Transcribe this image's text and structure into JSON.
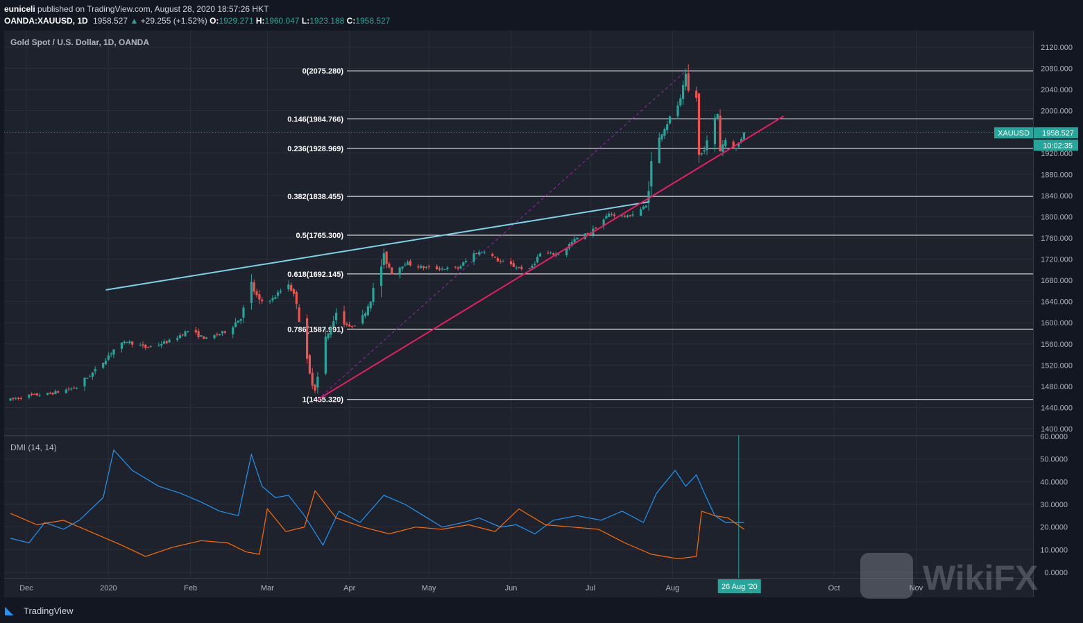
{
  "header": {
    "author": "euniceli",
    "published_text": "published on TradingView.com, August 28, 2020 18:57:26 HKT",
    "symbol": "OANDA:XAUUSD, 1D",
    "price": "1958.527",
    "change": "+29.255 (+1.52%)",
    "open_label": "O:",
    "open": "1929.271",
    "high_label": "H:",
    "high": "1960.047",
    "low_label": "L:",
    "low": "1923.188",
    "close_label": "C:",
    "close": "1958.527"
  },
  "colors": {
    "background": "#1e222d",
    "up": "#26a69a",
    "down": "#ef5350",
    "fib": "#ffffff",
    "resistance_line": "#7dd3e8",
    "support_line": "#e91e63",
    "fib_trend": "#9c27b0",
    "dmi_plus": "#2196f3",
    "dmi_minus": "#ff6d00",
    "tag": "#26a69a"
  },
  "chart_data": {
    "type": "candlestick",
    "title": "Gold Spot / U.S. Dollar, 1D, OANDA",
    "ylim": [
      1400,
      2130
    ],
    "y_ticks": [
      "2120.000",
      "2080.000",
      "2040.000",
      "2000.000",
      "1960.000",
      "1920.000",
      "1880.000",
      "1840.000",
      "1800.000",
      "1760.000",
      "1720.000",
      "1680.000",
      "1640.000",
      "1600.000",
      "1560.000",
      "1520.000",
      "1480.000",
      "1440.000",
      "1400.000"
    ],
    "x_ticks": [
      "Dec",
      "2020",
      "Feb",
      "Mar",
      "Apr",
      "May",
      "Jun",
      "Jul",
      "Aug",
      "Oct",
      "Nov"
    ],
    "close_path": [
      [
        "2019-11-25",
        1455
      ],
      [
        "2019-12-03",
        1463
      ],
      [
        "2019-12-10",
        1466
      ],
      [
        "2019-12-20",
        1478
      ],
      [
        "2019-12-27",
        1510
      ],
      [
        "2020-01-03",
        1550
      ],
      [
        "2020-01-08",
        1565
      ],
      [
        "2020-01-15",
        1553
      ],
      [
        "2020-01-24",
        1565
      ],
      [
        "2020-01-31",
        1585
      ],
      [
        "2020-02-07",
        1570
      ],
      [
        "2020-02-14",
        1583
      ],
      [
        "2020-02-20",
        1610
      ],
      [
        "2020-02-24",
        1670
      ],
      [
        "2020-02-27",
        1640
      ],
      [
        "2020-03-03",
        1645
      ],
      [
        "2020-03-09",
        1675
      ],
      [
        "2020-03-12",
        1640
      ],
      [
        "2020-03-16",
        1513
      ],
      [
        "2020-03-19",
        1475
      ],
      [
        "2020-03-23",
        1565
      ],
      [
        "2020-03-27",
        1620
      ],
      [
        "2020-04-01",
        1590
      ],
      [
        "2020-04-06",
        1610
      ],
      [
        "2020-04-09",
        1645
      ],
      [
        "2020-04-14",
        1725
      ],
      [
        "2020-04-17",
        1695
      ],
      [
        "2020-04-22",
        1713
      ],
      [
        "2020-04-28",
        1705
      ],
      [
        "2020-05-05",
        1702
      ],
      [
        "2020-05-12",
        1703
      ],
      [
        "2020-05-18",
        1730
      ],
      [
        "2020-05-22",
        1735
      ],
      [
        "2020-05-28",
        1715
      ],
      [
        "2020-06-03",
        1705
      ],
      [
        "2020-06-08",
        1700
      ],
      [
        "2020-06-12",
        1730
      ],
      [
        "2020-06-19",
        1730
      ],
      [
        "2020-06-26",
        1760
      ],
      [
        "2020-07-01",
        1770
      ],
      [
        "2020-07-08",
        1805
      ],
      [
        "2020-07-15",
        1800
      ],
      [
        "2020-07-22",
        1820
      ],
      [
        "2020-07-24",
        1900
      ],
      [
        "2020-07-28",
        1960
      ],
      [
        "2020-08-04",
        2020
      ],
      [
        "2020-08-06",
        2064
      ],
      [
        "2020-08-07",
        2035
      ],
      [
        "2020-08-10",
        2025
      ],
      [
        "2020-08-11",
        1910
      ],
      [
        "2020-08-14",
        1940
      ],
      [
        "2020-08-18",
        1995
      ],
      [
        "2020-08-19",
        1930
      ],
      [
        "2020-08-21",
        1945
      ],
      [
        "2020-08-25",
        1929
      ],
      [
        "2020-08-28",
        1958.527
      ]
    ],
    "fibonacci": [
      {
        "label": "0(2075.280)",
        "value": 2075.28
      },
      {
        "label": "0.146(1984.766)",
        "value": 1984.766
      },
      {
        "label": "0.236(1928.969)",
        "value": 1928.969
      },
      {
        "label": "0.382(1838.455)",
        "value": 1838.455
      },
      {
        "label": "0.5(1765.300)",
        "value": 1765.3
      },
      {
        "label": "0.618(1692.145)",
        "value": 1692.145
      },
      {
        "label": "0.786(1587.991)",
        "value": 1587.991
      },
      {
        "label": "1(1455.320)",
        "value": 1455.32
      }
    ],
    "trendlines": [
      {
        "name": "resistance",
        "from": [
          "2019-12-31",
          1662
        ],
        "to": [
          "2020-07-23",
          1828
        ]
      },
      {
        "name": "support",
        "from": [
          "2020-03-20",
          1455
        ],
        "to": [
          "2020-09-12",
          1990
        ]
      },
      {
        "name": "fib_trend",
        "from": [
          "2020-03-20",
          1455
        ],
        "to": [
          "2020-08-06",
          2075
        ]
      }
    ],
    "last_price_label": "XAUUSD",
    "last_price": "1958.527",
    "countdown": "10:02:35",
    "dmi": {
      "title": "DMI (14, 14)",
      "ylim": [
        0,
        60
      ],
      "y_ticks": [
        "60.0000",
        "50.0000",
        "40.0000",
        "30.0000",
        "20.0000",
        "10.0000",
        "0.0000"
      ],
      "series": [
        {
          "name": "+DI",
          "points": [
            [
              "2019-11-25",
              15
            ],
            [
              "2019-12-02",
              13
            ],
            [
              "2019-12-08",
              22
            ],
            [
              "2019-12-15",
              19
            ],
            [
              "2019-12-21",
              23
            ],
            [
              "2019-12-30",
              33
            ],
            [
              "2020-01-03",
              54
            ],
            [
              "2020-01-10",
              45
            ],
            [
              "2020-01-20",
              38
            ],
            [
              "2020-01-28",
              35
            ],
            [
              "2020-02-05",
              31
            ],
            [
              "2020-02-12",
              27
            ],
            [
              "2020-02-19",
              25
            ],
            [
              "2020-02-24",
              52
            ],
            [
              "2020-02-28",
              38
            ],
            [
              "2020-03-04",
              33
            ],
            [
              "2020-03-09",
              34
            ],
            [
              "2020-03-15",
              25
            ],
            [
              "2020-03-22",
              12
            ],
            [
              "2020-03-28",
              27
            ],
            [
              "2020-04-05",
              22
            ],
            [
              "2020-04-14",
              34
            ],
            [
              "2020-04-22",
              30
            ],
            [
              "2020-04-29",
              25
            ],
            [
              "2020-05-06",
              20
            ],
            [
              "2020-05-14",
              22
            ],
            [
              "2020-05-20",
              24
            ],
            [
              "2020-05-28",
              20
            ],
            [
              "2020-06-03",
              21
            ],
            [
              "2020-06-10",
              17
            ],
            [
              "2020-06-17",
              23
            ],
            [
              "2020-06-26",
              25
            ],
            [
              "2020-07-05",
              23
            ],
            [
              "2020-07-13",
              27
            ],
            [
              "2020-07-21",
              22
            ],
            [
              "2020-07-26",
              35
            ],
            [
              "2020-08-02",
              45
            ],
            [
              "2020-08-06",
              38
            ],
            [
              "2020-08-10",
              43
            ],
            [
              "2020-08-13",
              35
            ],
            [
              "2020-08-17",
              25
            ],
            [
              "2020-08-21",
              22
            ],
            [
              "2020-08-28",
              22
            ]
          ]
        },
        {
          "name": "-DI",
          "points": [
            [
              "2019-11-25",
              26
            ],
            [
              "2019-12-05",
              21
            ],
            [
              "2019-12-15",
              23
            ],
            [
              "2019-12-25",
              18
            ],
            [
              "2020-01-06",
              12
            ],
            [
              "2020-01-15",
              7
            ],
            [
              "2020-01-25",
              11
            ],
            [
              "2020-02-05",
              14
            ],
            [
              "2020-02-15",
              13
            ],
            [
              "2020-02-22",
              9
            ],
            [
              "2020-02-27",
              8
            ],
            [
              "2020-03-01",
              28
            ],
            [
              "2020-03-08",
              18
            ],
            [
              "2020-03-15",
              20
            ],
            [
              "2020-03-19",
              36
            ],
            [
              "2020-03-27",
              24
            ],
            [
              "2020-04-06",
              20
            ],
            [
              "2020-04-16",
              17
            ],
            [
              "2020-04-26",
              20
            ],
            [
              "2020-05-06",
              19
            ],
            [
              "2020-05-16",
              21
            ],
            [
              "2020-05-26",
              18
            ],
            [
              "2020-06-04",
              28
            ],
            [
              "2020-06-14",
              21
            ],
            [
              "2020-06-24",
              20
            ],
            [
              "2020-07-04",
              19
            ],
            [
              "2020-07-14",
              13
            ],
            [
              "2020-07-24",
              8
            ],
            [
              "2020-08-03",
              6
            ],
            [
              "2020-08-10",
              7
            ],
            [
              "2020-08-12",
              27
            ],
            [
              "2020-08-17",
              25
            ],
            [
              "2020-08-22",
              24
            ],
            [
              "2020-08-28",
              19
            ]
          ]
        }
      ]
    },
    "crosshair_date_label": "26 Aug '20"
  },
  "footer": {
    "brand": "TradingView"
  },
  "watermark": {
    "text": "WikiFX"
  }
}
